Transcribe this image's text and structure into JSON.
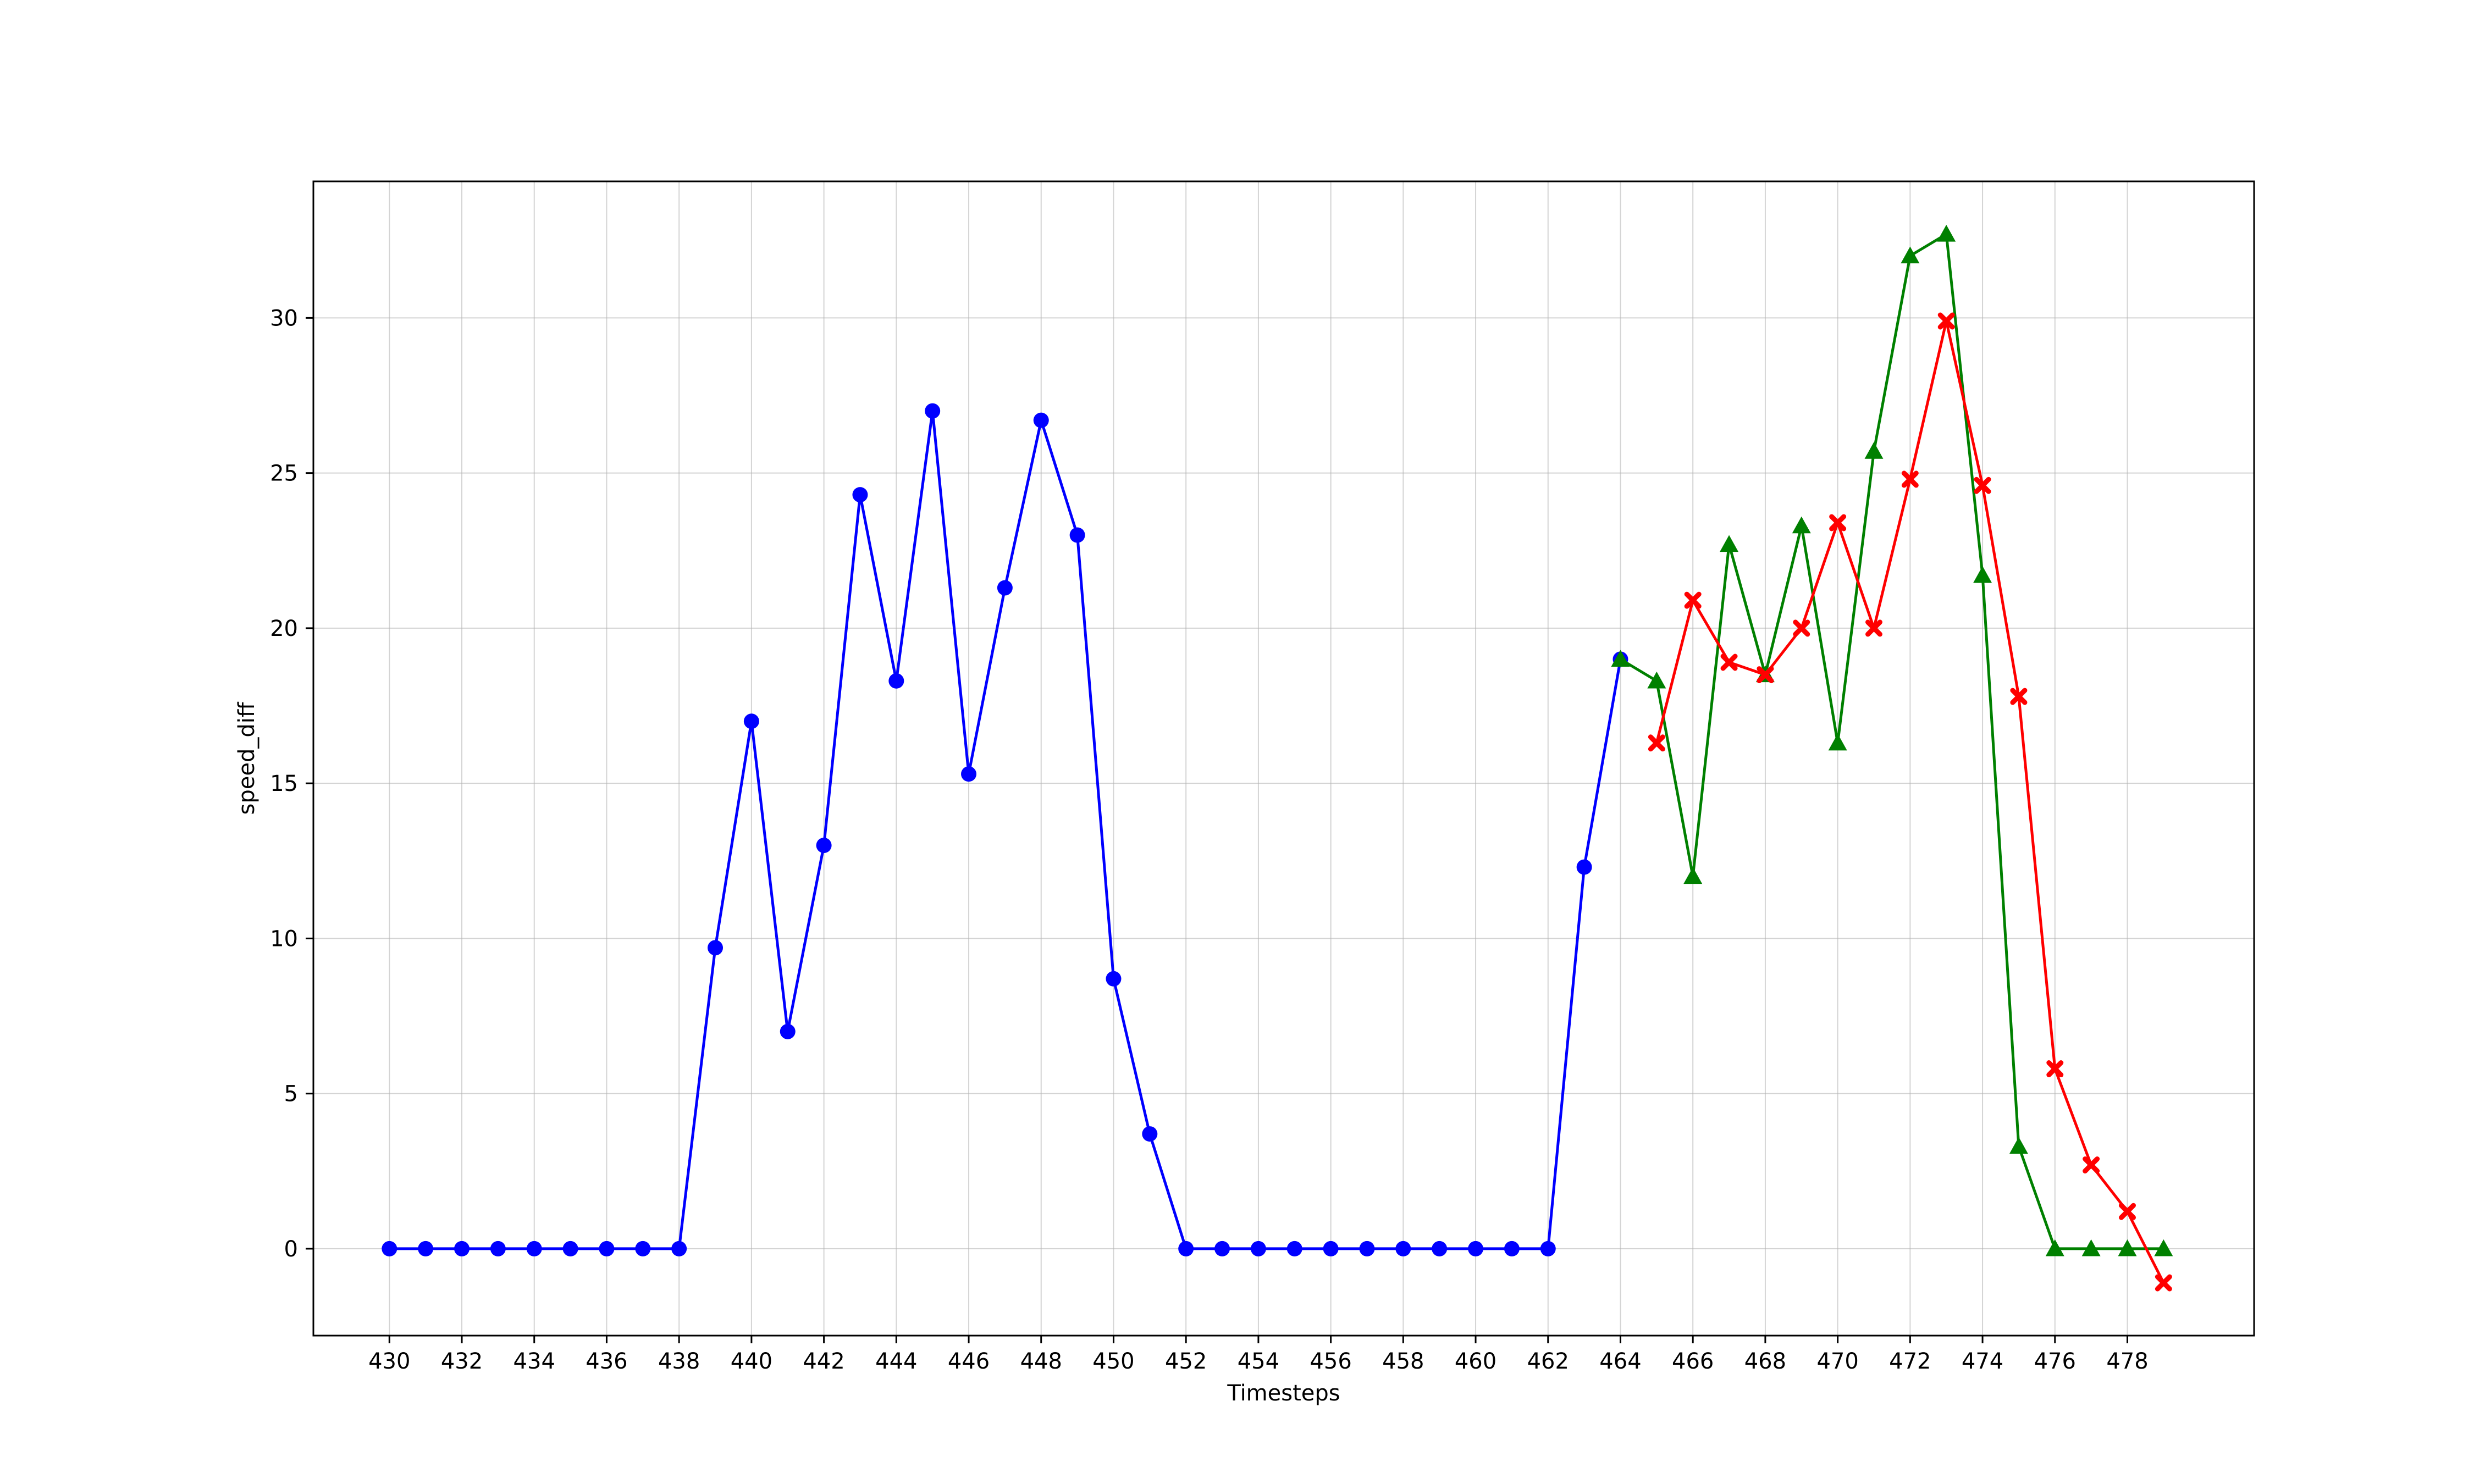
{
  "chart_data": {
    "type": "line",
    "title": "",
    "xlabel": "Timesteps",
    "ylabel": "speed_diff",
    "xlim": [
      427.9,
      481.5
    ],
    "ylim": [
      -2.8,
      34.4
    ],
    "xticks": [
      430,
      432,
      434,
      436,
      438,
      440,
      442,
      444,
      446,
      448,
      450,
      452,
      454,
      456,
      458,
      460,
      462,
      464,
      466,
      468,
      470,
      472,
      474,
      476,
      478
    ],
    "yticks": [
      0,
      5,
      10,
      15,
      20,
      25,
      30
    ],
    "grid": true,
    "legend": "none",
    "series": [
      {
        "color": "#0000ff",
        "marker": "circle",
        "x": [
          430,
          431,
          432,
          433,
          434,
          435,
          436,
          437,
          438,
          439,
          440,
          441,
          442,
          443,
          444,
          445,
          446,
          447,
          448,
          449,
          450,
          451,
          452,
          453,
          454,
          455,
          456,
          457,
          458,
          459,
          460,
          461,
          462,
          463,
          464
        ],
        "y": [
          0,
          0,
          0,
          0,
          0,
          0,
          0,
          0,
          0,
          9.7,
          17.0,
          7.0,
          13.0,
          24.3,
          18.3,
          27.0,
          15.3,
          21.3,
          26.7,
          23.0,
          8.7,
          3.7,
          0,
          0,
          0,
          0,
          0,
          0,
          0,
          0,
          0,
          0,
          0,
          12.3,
          19.0
        ]
      },
      {
        "color": "#008000",
        "marker": "triangle",
        "x": [
          464,
          465,
          466,
          467,
          468,
          469,
          470,
          471,
          472,
          473,
          474,
          475,
          476,
          477,
          478,
          479
        ],
        "y": [
          19.0,
          18.3,
          12.0,
          22.7,
          18.5,
          23.3,
          16.3,
          25.7,
          32.0,
          32.7,
          21.7,
          3.3,
          0,
          0,
          0,
          0
        ]
      },
      {
        "color": "#ff0000",
        "marker": "x-filled",
        "x": [
          465,
          466,
          467,
          468,
          469,
          470,
          471,
          472,
          473,
          474,
          475,
          476,
          477,
          478,
          479
        ],
        "y": [
          16.3,
          20.9,
          18.9,
          18.5,
          20.0,
          23.4,
          20.0,
          24.8,
          29.9,
          24.6,
          17.8,
          5.8,
          2.7,
          1.2,
          -1.1
        ]
      }
    ]
  }
}
